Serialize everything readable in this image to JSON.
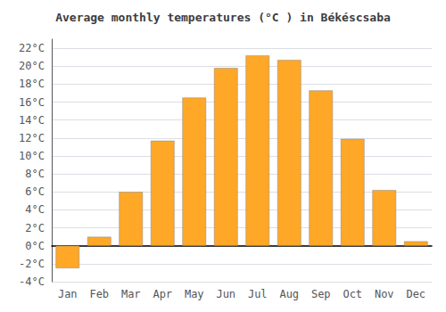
{
  "chart_data": {
    "type": "bar",
    "title": "Average monthly temperatures (°C ) in Békéscsaba",
    "categories": [
      "Jan",
      "Feb",
      "Mar",
      "Apr",
      "May",
      "Jun",
      "Jul",
      "Aug",
      "Sep",
      "Oct",
      "Nov",
      "Dec"
    ],
    "values": [
      -2.5,
      1.0,
      6.0,
      11.7,
      16.5,
      19.8,
      21.2,
      20.7,
      17.3,
      11.9,
      6.2,
      0.5
    ],
    "color": "#FFA726",
    "ylim": [
      -4,
      23
    ],
    "yticks": [
      {
        "value": -4,
        "label": "-4°C"
      },
      {
        "value": -2,
        "label": "-2°C"
      },
      {
        "value": 0,
        "label": "0°C"
      },
      {
        "value": 2,
        "label": "2°C"
      },
      {
        "value": 4,
        "label": "4°C"
      },
      {
        "value": 6,
        "label": "6°C"
      },
      {
        "value": 8,
        "label": "8°C"
      },
      {
        "value": 10,
        "label": "10°C"
      },
      {
        "value": 12,
        "label": "12°C"
      },
      {
        "value": 14,
        "label": "14°C"
      },
      {
        "value": 16,
        "label": "16°C"
      },
      {
        "value": 18,
        "label": "18°C"
      },
      {
        "value": 20,
        "label": "20°C"
      },
      {
        "value": 22,
        "label": "22°C"
      }
    ],
    "grid": true
  }
}
